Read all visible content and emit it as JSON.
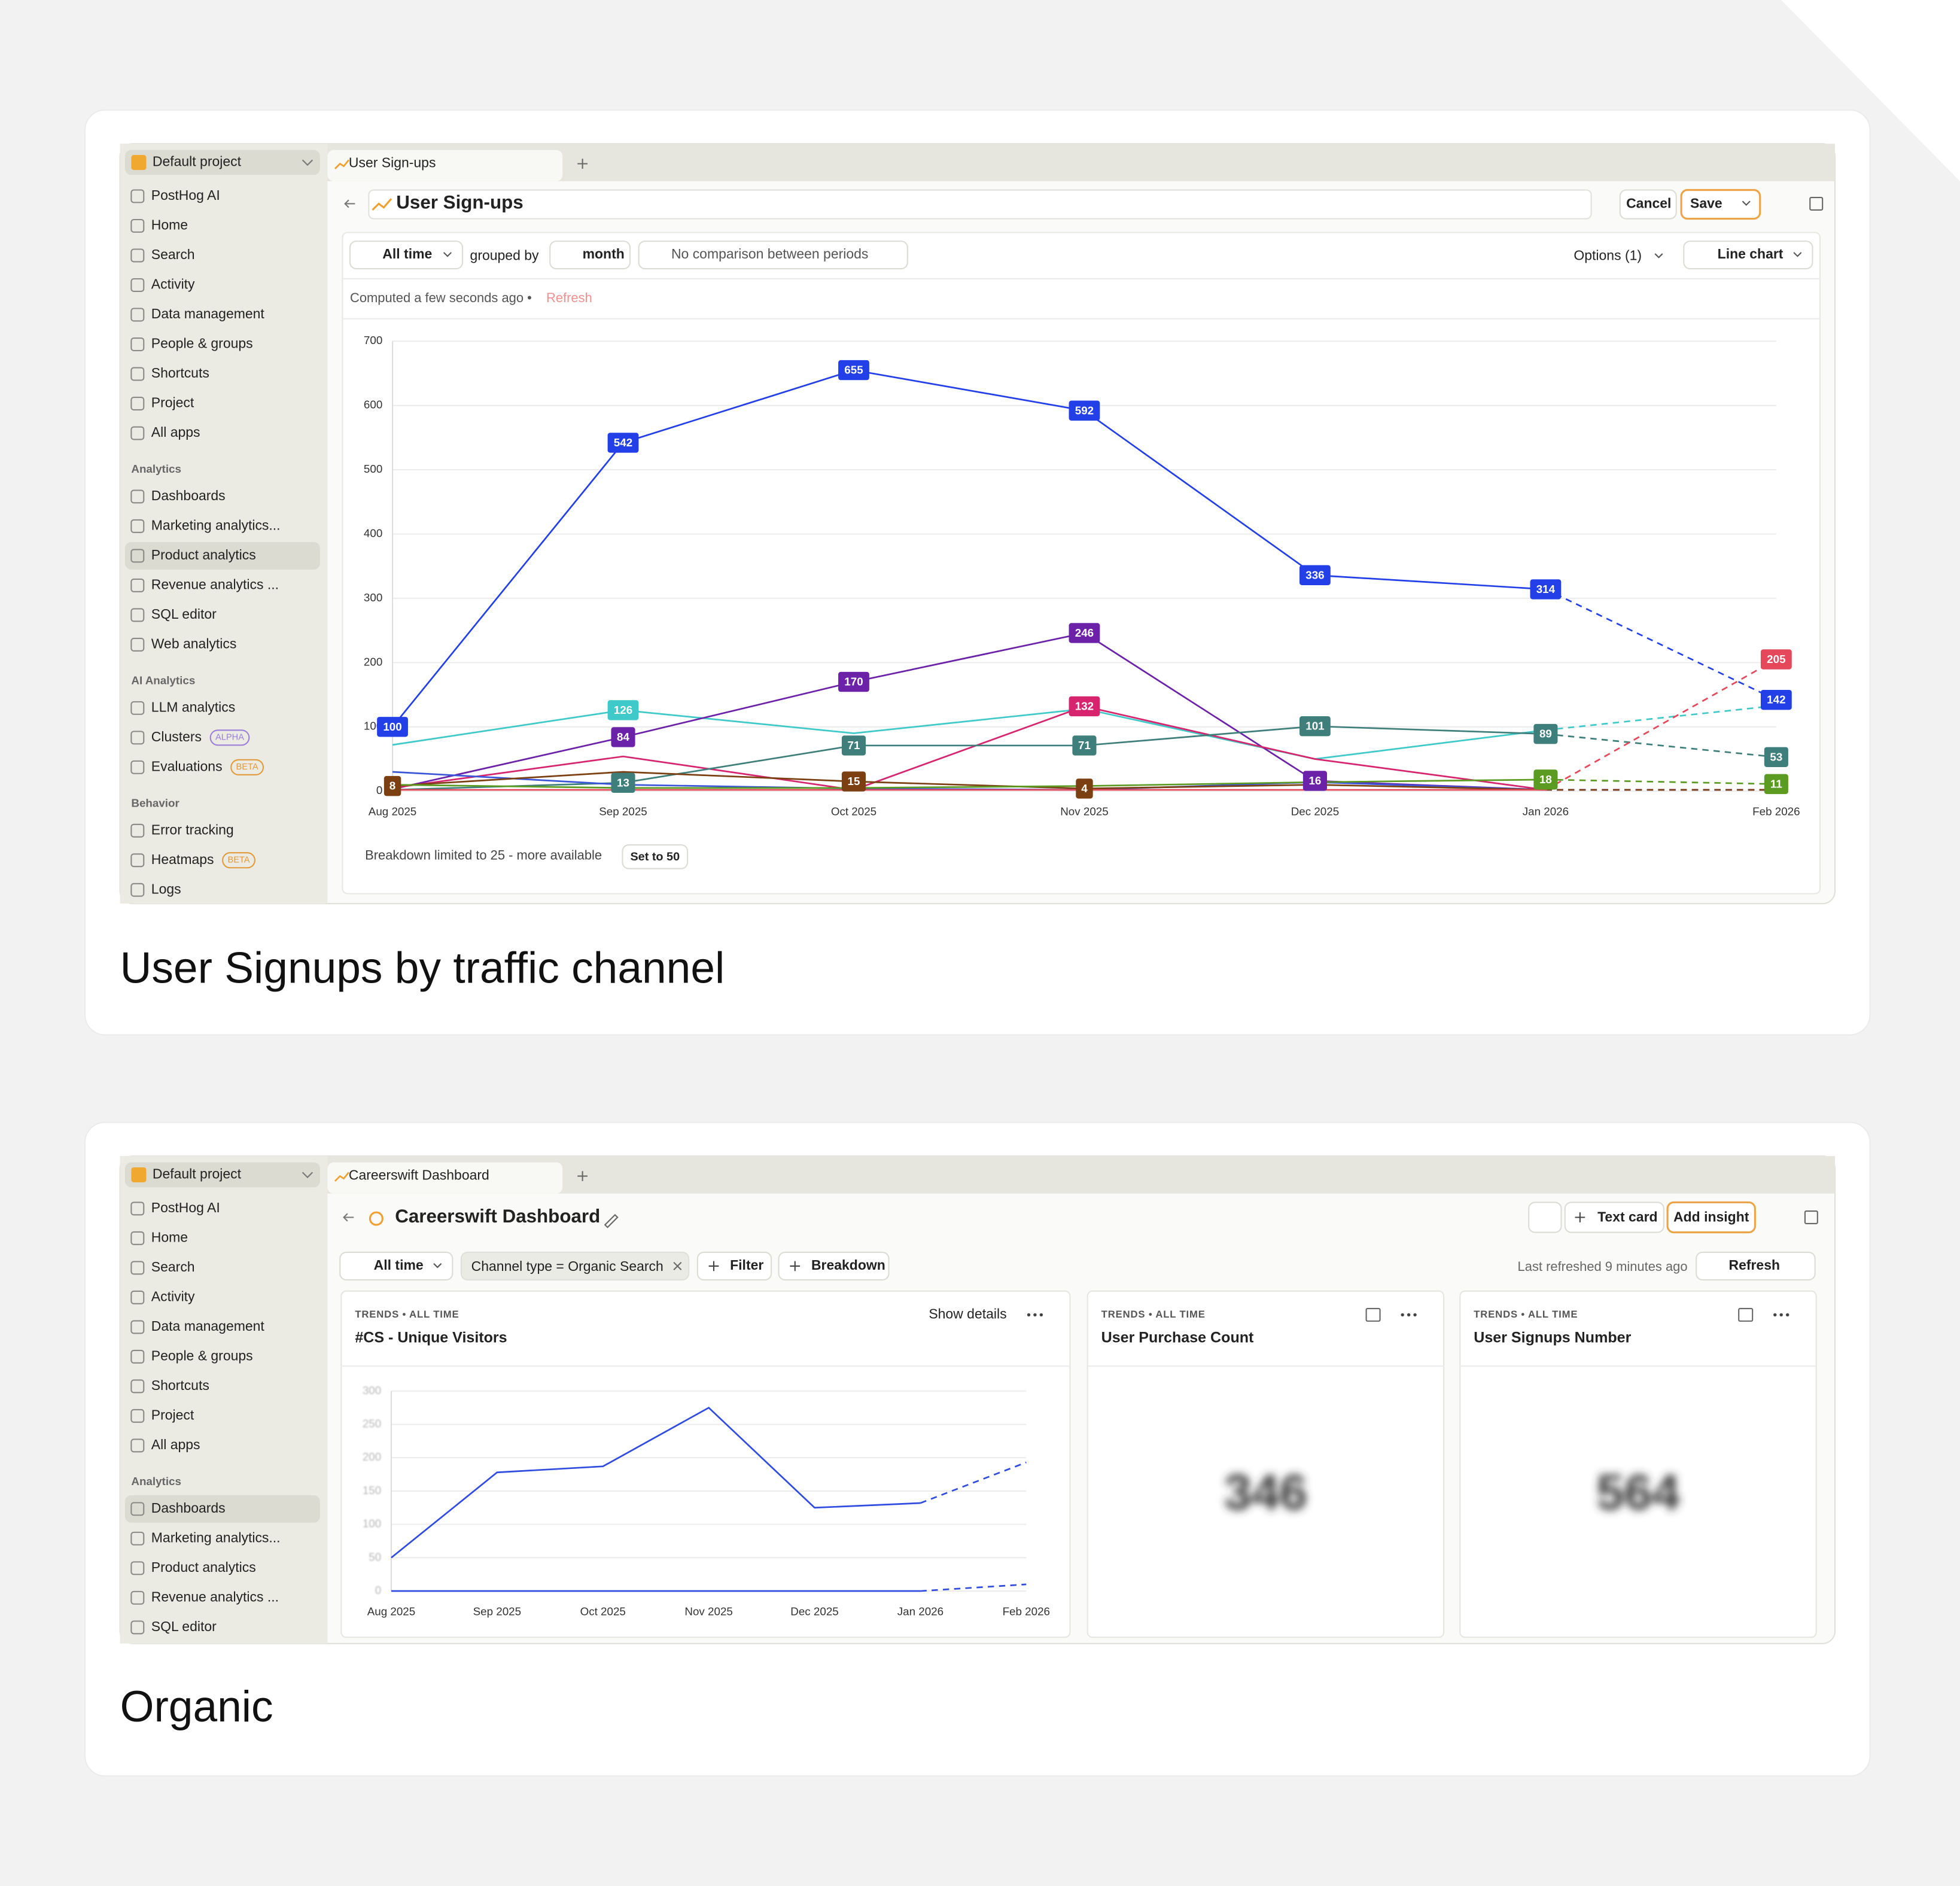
{
  "chart_data": [
    {
      "type": "line",
      "categories": [
        "Aug 2025",
        "Sep 2025",
        "Oct 2025",
        "Nov 2025",
        "Dec 2025",
        "Jan 2026",
        "Feb 2026"
      ],
      "ylim": [
        0,
        700
      ],
      "yticks": [
        0,
        100,
        200,
        300,
        400,
        500,
        600,
        700
      ],
      "grid": true,
      "dashed_last_segment": true,
      "series": [
        {
          "color": "#2340e8",
          "values": [
            100,
            542,
            655,
            592,
            336,
            314,
            142
          ],
          "labels_at": [
            0,
            1,
            2,
            3,
            4,
            5,
            6
          ]
        },
        {
          "color": "#3fc9c9",
          "values": [
            72,
            126,
            90,
            128,
            50,
            95,
            133
          ],
          "labels_at": [
            1
          ]
        },
        {
          "color": "#6b21a8",
          "values": [
            3,
            84,
            170,
            246,
            16,
            2,
            2
          ],
          "labels_at": [
            1,
            2,
            3,
            4
          ]
        },
        {
          "color": "#d6246e",
          "values": [
            5,
            54,
            2,
            132,
            50,
            2,
            2
          ],
          "labels_at": [
            3
          ]
        },
        {
          "color": "#3f7f7b",
          "values": [
            2,
            13,
            71,
            71,
            101,
            89,
            53
          ],
          "labels_at": [
            1,
            2,
            3,
            4,
            5,
            6
          ]
        },
        {
          "color": "#3a55d8",
          "values": [
            30,
            10,
            4,
            2,
            14,
            2,
            2
          ],
          "labels_at": []
        },
        {
          "color": "#7b3f12",
          "values": [
            8,
            30,
            15,
            4,
            10,
            2,
            2
          ],
          "labels_at": [
            0,
            2,
            3
          ]
        },
        {
          "color": "#5b9b22",
          "values": [
            10,
            5,
            5,
            8,
            14,
            18,
            11
          ],
          "labels_at": [
            5,
            6
          ]
        },
        {
          "color": "#e5485a",
          "values": [
            2,
            2,
            2,
            2,
            2,
            2,
            205
          ],
          "labels_at": [
            6
          ]
        }
      ]
    },
    {
      "type": "line",
      "categories": [
        "Aug 2025",
        "Sep 2025",
        "Oct 2025",
        "Nov 2025",
        "Dec 2025",
        "Jan 2026",
        "Feb 2026"
      ],
      "ylim": [
        0,
        300
      ],
      "yticks": [
        0,
        50,
        100,
        150,
        200,
        250,
        300
      ],
      "grid": true,
      "dashed_last_segment": true,
      "blurred_ticks": true,
      "series": [
        {
          "color": "#2f4be0",
          "values": [
            50,
            178,
            187,
            275,
            125,
            132,
            193
          ]
        },
        {
          "color": "#2f4be0",
          "values": [
            0,
            0,
            0,
            0,
            0,
            0,
            10
          ]
        }
      ]
    }
  ],
  "screens": [
    {
      "project": "Default project",
      "tab": "User Sign-ups",
      "sidebar": [
        {
          "label": "PostHog AI"
        },
        {
          "label": "Home"
        },
        {
          "label": "Search"
        },
        {
          "label": "Activity"
        },
        {
          "label": "Data management"
        },
        {
          "label": "People & groups"
        },
        {
          "label": "Shortcuts"
        },
        {
          "label": "Project"
        },
        {
          "label": "All apps"
        },
        {
          "label": "Analytics",
          "section": true
        },
        {
          "label": "Dashboards"
        },
        {
          "label": "Marketing analytics..."
        },
        {
          "label": "Product analytics",
          "active": true
        },
        {
          "label": "Revenue analytics ..."
        },
        {
          "label": "SQL editor"
        },
        {
          "label": "Web analytics"
        },
        {
          "label": "AI Analytics",
          "section": true
        },
        {
          "label": "LLM analytics"
        },
        {
          "label": "Clusters",
          "badge": "ALPHA"
        },
        {
          "label": "Evaluations",
          "badge": "BETA"
        },
        {
          "label": "Behavior",
          "section": true
        },
        {
          "label": "Error tracking"
        },
        {
          "label": "Heatmaps",
          "badge": "BETA"
        },
        {
          "label": "Logs"
        }
      ],
      "title": "User Sign-ups",
      "buttons": [
        "Cancel",
        "Save"
      ],
      "filters": [
        "All time",
        "grouped by",
        "month",
        "No comparison between periods"
      ],
      "options": "Options (1)",
      "chart_kind": "Line chart",
      "computed": "Computed a few seconds ago •",
      "refresh": "Refresh",
      "breakdown_note": "Breakdown limited to 25 - more available",
      "breakdown_button": "Set to 50",
      "caption": "User Signups by traffic channel"
    },
    {
      "project": "Default project",
      "tab": "Careerswift Dashboard",
      "sidebar": [
        {
          "label": "PostHog AI"
        },
        {
          "label": "Home"
        },
        {
          "label": "Search"
        },
        {
          "label": "Activity"
        },
        {
          "label": "Data management"
        },
        {
          "label": "People & groups"
        },
        {
          "label": "Shortcuts"
        },
        {
          "label": "Project"
        },
        {
          "label": "All apps"
        },
        {
          "label": "Analytics",
          "section": true
        },
        {
          "label": "Dashboards",
          "active": true
        },
        {
          "label": "Marketing analytics..."
        },
        {
          "label": "Product analytics"
        },
        {
          "label": "Revenue analytics ..."
        },
        {
          "label": "SQL editor"
        }
      ],
      "title": "Careerswift Dashboard",
      "buttons": [
        "Text card",
        "Add insight"
      ],
      "filters": [
        "All time",
        "Channel type = Organic Search",
        "Filter",
        "Breakdown"
      ],
      "last_refreshed": "Last refreshed 9 minutes ago",
      "refresh": "Refresh",
      "tiles": [
        {
          "meta": "TRENDS • ALL TIME",
          "title": "#CS - Unique Visitors",
          "action": "Show details"
        },
        {
          "meta": "TRENDS • ALL TIME",
          "title": "User Purchase Count",
          "value": "346"
        },
        {
          "meta": "TRENDS • ALL TIME",
          "title": "User Signups Number",
          "value": "564"
        }
      ],
      "caption": "Organic"
    }
  ]
}
